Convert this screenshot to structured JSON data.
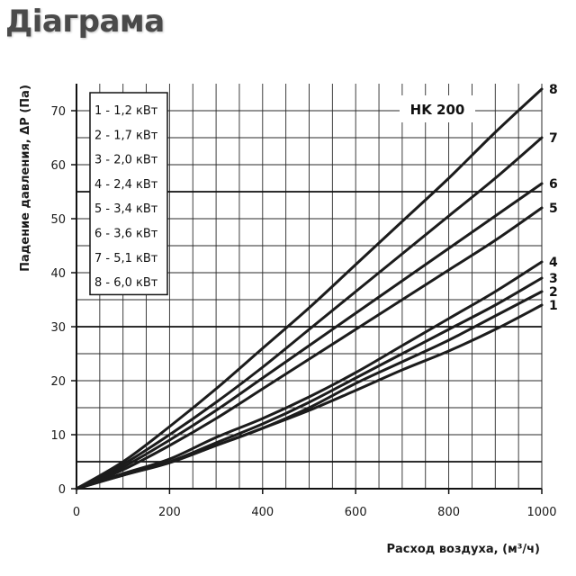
{
  "page": {
    "title": "Діаграма"
  },
  "chart_data": {
    "type": "line",
    "title": "",
    "badge": "HK 200",
    "xlabel": "Расход воздуха, (м³/ч)",
    "ylabel": "Падение давления, ΔP (Па)",
    "xlim": [
      0,
      1000
    ],
    "ylim": [
      0,
      75
    ],
    "xticks": [
      0,
      200,
      400,
      600,
      800,
      1000
    ],
    "yticks": [
      0,
      10,
      20,
      30,
      40,
      50,
      60,
      70
    ],
    "x_minor_step": 50,
    "y_minor_step": 5,
    "y_major_lines": [
      5,
      30,
      55
    ],
    "grid": true,
    "legend_position": "top-left",
    "series": [
      {
        "name": "1 - 1,2 кВт",
        "label": "1",
        "x": [
          0,
          100,
          200,
          300,
          400,
          500,
          600,
          700,
          800,
          900,
          1000
        ],
        "y": [
          0,
          2.5,
          4.8,
          8,
          11.2,
          14.5,
          18.2,
          22,
          25.5,
          29.5,
          34
        ]
      },
      {
        "name": "2 - 1,7 кВт",
        "label": "2",
        "x": [
          0,
          100,
          200,
          300,
          400,
          500,
          600,
          700,
          800,
          900,
          1000
        ],
        "y": [
          0,
          2.5,
          4.9,
          8,
          11.2,
          15,
          19.5,
          23.5,
          27.5,
          32,
          36.5
        ]
      },
      {
        "name": "3 - 2,0 кВт",
        "label": "3",
        "x": [
          0,
          100,
          200,
          300,
          400,
          500,
          600,
          700,
          800,
          900,
          1000
        ],
        "y": [
          0,
          2.6,
          5,
          8.5,
          12,
          16,
          20.5,
          25,
          29.5,
          34,
          39
        ]
      },
      {
        "name": "4 - 2,4 кВт",
        "label": "4",
        "x": [
          0,
          100,
          200,
          300,
          400,
          500,
          600,
          700,
          800,
          900,
          1000
        ],
        "y": [
          0,
          2.8,
          5.5,
          9.5,
          13,
          17,
          21.5,
          26.5,
          31.5,
          36.5,
          42
        ]
      },
      {
        "name": "5 - 3,4 кВт",
        "label": "5",
        "x": [
          0,
          100,
          200,
          300,
          400,
          500,
          600,
          700,
          800,
          900,
          1000
        ],
        "y": [
          0,
          3.5,
          8,
          13,
          18.5,
          24,
          29.5,
          35,
          40.5,
          46,
          52
        ]
      },
      {
        "name": "6 - 3,6 кВт",
        "label": "6",
        "x": [
          0,
          100,
          200,
          300,
          400,
          500,
          600,
          700,
          800,
          900,
          1000
        ],
        "y": [
          0,
          4,
          9,
          14.5,
          20.5,
          26.5,
          32.5,
          38.5,
          44.5,
          50.5,
          56.5
        ]
      },
      {
        "name": "7 - 5,1 кВт",
        "label": "7",
        "x": [
          0,
          100,
          200,
          300,
          400,
          500,
          600,
          700,
          800,
          900,
          1000
        ],
        "y": [
          0,
          4.5,
          10,
          16,
          22.5,
          29.5,
          36.5,
          43.5,
          50.5,
          57.5,
          65
        ]
      },
      {
        "name": "8 - 6,0 кВт",
        "label": "8",
        "x": [
          0,
          100,
          200,
          300,
          400,
          500,
          600,
          700,
          800,
          900,
          1000
        ],
        "y": [
          0,
          5,
          11.5,
          18.5,
          26,
          33.5,
          41.5,
          49.5,
          57.5,
          66,
          74
        ]
      }
    ]
  }
}
